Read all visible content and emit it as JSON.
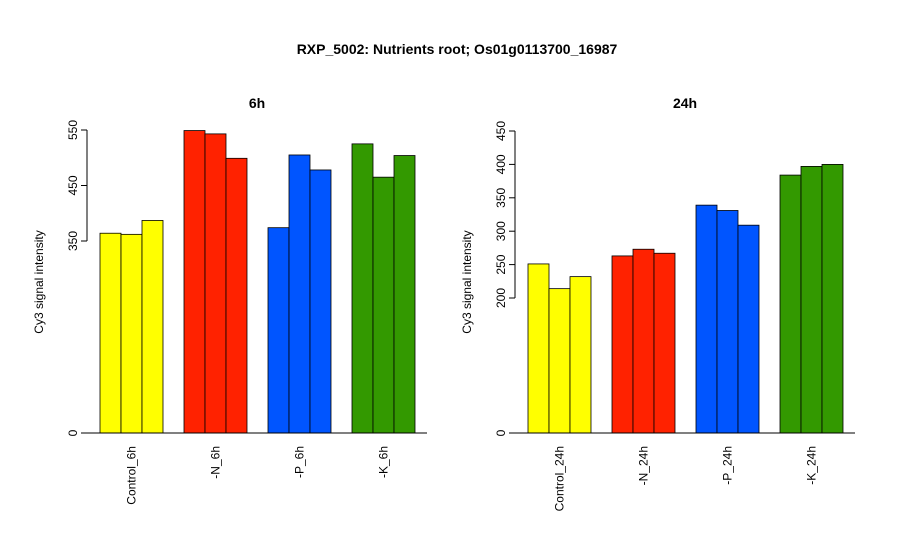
{
  "title": "RXP_5002: Nutrients root; Os01g0113700_16987",
  "colors": {
    "Control": "#FFFF00",
    "N": "#FF2200",
    "P": "#0055FF",
    "K": "#339900"
  },
  "chart_data": [
    {
      "type": "bar",
      "title": "6h",
      "ylabel": "Cy3 signal intensity",
      "ylim": [
        0,
        550
      ],
      "yscale": "broken-axis (0 then 350-550)",
      "yticks": [
        "0",
        "350",
        "450",
        "550"
      ],
      "categories": [
        "Control_6h",
        "-N_6h",
        "-P_6h",
        "-K_6h"
      ],
      "category_colors": [
        "Control",
        "N",
        "P",
        "K"
      ],
      "series": [
        {
          "values": [
            364,
            549,
            374,
            525
          ]
        },
        {
          "values": [
            362,
            543,
            505,
            465
          ]
        },
        {
          "values": [
            387,
            499,
            478,
            504
          ]
        }
      ]
    },
    {
      "type": "bar",
      "title": "24h",
      "ylabel": "Cy3 signal intensity",
      "ylim": [
        0,
        450
      ],
      "yscale": "broken-axis (0 then 200-450)",
      "yticks": [
        "0",
        "200",
        "250",
        "300",
        "350",
        "400",
        "450"
      ],
      "categories": [
        "Control_24h",
        "-N_24h",
        "-P_24h",
        "-K_24h"
      ],
      "category_colors": [
        "Control",
        "N",
        "P",
        "K"
      ],
      "series": [
        {
          "values": [
            251,
            263,
            339,
            384
          ]
        },
        {
          "values": [
            214,
            273,
            331,
            397
          ]
        },
        {
          "values": [
            232,
            267,
            309,
            400
          ]
        }
      ]
    }
  ]
}
